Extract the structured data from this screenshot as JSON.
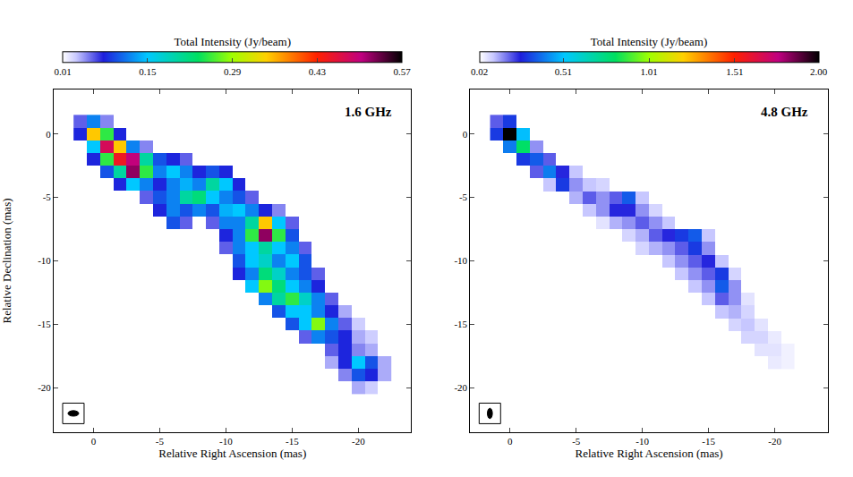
{
  "chart_data": [
    {
      "type": "heatmap",
      "title": "1.6 GHz",
      "xlabel": "Relative Right Ascension (mas)",
      "ylabel": "Relative Declination (mas)",
      "xlim": [
        3,
        -24
      ],
      "xticks": [
        0,
        -5,
        -10,
        -15,
        -20
      ],
      "ylim": [
        -23.5,
        3.5
      ],
      "yticks": [
        -20,
        -15,
        -10,
        -5,
        0
      ],
      "grid": false,
      "colorbar": {
        "title": "Total Intensity (Jy/beam)",
        "range": [
          0.01,
          0.57
        ],
        "ticks": [
          0.01,
          0.15,
          0.29,
          0.43,
          0.57
        ]
      },
      "cells": [
        [
          1,
          1,
          0.06
        ],
        [
          0,
          1,
          0.12
        ],
        [
          -1,
          1,
          0.05
        ],
        [
          1,
          0,
          0.08
        ],
        [
          0,
          0,
          0.35
        ],
        [
          -1,
          0,
          0.25
        ],
        [
          -2,
          0,
          0.08
        ],
        [
          0,
          -1,
          0.15
        ],
        [
          -1,
          -1,
          0.48
        ],
        [
          -2,
          -1,
          0.35
        ],
        [
          -3,
          -1,
          0.12
        ],
        [
          -4,
          -1,
          0.05
        ],
        [
          0,
          -2,
          0.08
        ],
        [
          -1,
          -2,
          0.25
        ],
        [
          -2,
          -2,
          0.45
        ],
        [
          -3,
          -2,
          0.5
        ],
        [
          -4,
          -2,
          0.2
        ],
        [
          -5,
          -2,
          0.1
        ],
        [
          -6,
          -2,
          0.08
        ],
        [
          -7,
          -2,
          0.06
        ],
        [
          -1,
          -3,
          0.1
        ],
        [
          -2,
          -3,
          0.2
        ],
        [
          -3,
          -3,
          0.52
        ],
        [
          -4,
          -3,
          0.25
        ],
        [
          -5,
          -3,
          0.12
        ],
        [
          -6,
          -3,
          0.15
        ],
        [
          -7,
          -3,
          0.12
        ],
        [
          -8,
          -3,
          0.08
        ],
        [
          -9,
          -3,
          0.1
        ],
        [
          -10,
          -3,
          0.08
        ],
        [
          -2,
          -4,
          0.08
        ],
        [
          -3,
          -4,
          0.15
        ],
        [
          -4,
          -4,
          0.12
        ],
        [
          -5,
          -4,
          0.08
        ],
        [
          -6,
          -4,
          0.12
        ],
        [
          -7,
          -4,
          0.14
        ],
        [
          -8,
          -4,
          0.12
        ],
        [
          -9,
          -4,
          0.2
        ],
        [
          -10,
          -4,
          0.15
        ],
        [
          -11,
          -4,
          0.08
        ],
        [
          -4,
          -5,
          0.06
        ],
        [
          -5,
          -5,
          0.1
        ],
        [
          -6,
          -5,
          0.12
        ],
        [
          -7,
          -5,
          0.2
        ],
        [
          -8,
          -5,
          0.22
        ],
        [
          -9,
          -5,
          0.15
        ],
        [
          -10,
          -5,
          0.12
        ],
        [
          -11,
          -5,
          0.1
        ],
        [
          -12,
          -5,
          0.06
        ],
        [
          -5,
          -6,
          0.08
        ],
        [
          -6,
          -6,
          0.12
        ],
        [
          -7,
          -6,
          0.1
        ],
        [
          -8,
          -6,
          0.12
        ],
        [
          -9,
          -6,
          0.1
        ],
        [
          -10,
          -6,
          0.14
        ],
        [
          -11,
          -6,
          0.15
        ],
        [
          -12,
          -6,
          0.12
        ],
        [
          -13,
          -6,
          0.08
        ],
        [
          -14,
          -6,
          0.05
        ],
        [
          -6,
          -7,
          0.1
        ],
        [
          -7,
          -7,
          0.06
        ],
        [
          -9,
          -7,
          0.06
        ],
        [
          -10,
          -7,
          0.12
        ],
        [
          -11,
          -7,
          0.12
        ],
        [
          -12,
          -7,
          0.2
        ],
        [
          -13,
          -7,
          0.35
        ],
        [
          -14,
          -7,
          0.15
        ],
        [
          -15,
          -7,
          0.06
        ],
        [
          -10,
          -8,
          0.08
        ],
        [
          -11,
          -8,
          0.12
        ],
        [
          -12,
          -8,
          0.25
        ],
        [
          -13,
          -8,
          0.52
        ],
        [
          -14,
          -8,
          0.25
        ],
        [
          -15,
          -8,
          0.1
        ],
        [
          -10,
          -9,
          0.06
        ],
        [
          -11,
          -9,
          0.12
        ],
        [
          -12,
          -9,
          0.15
        ],
        [
          -13,
          -9,
          0.2
        ],
        [
          -14,
          -9,
          0.15
        ],
        [
          -15,
          -9,
          0.12
        ],
        [
          -16,
          -9,
          0.06
        ],
        [
          -11,
          -10,
          0.1
        ],
        [
          -12,
          -10,
          0.15
        ],
        [
          -13,
          -10,
          0.18
        ],
        [
          -14,
          -10,
          0.12
        ],
        [
          -15,
          -10,
          0.15
        ],
        [
          -16,
          -10,
          0.1
        ],
        [
          -11,
          -11,
          0.08
        ],
        [
          -12,
          -11,
          0.12
        ],
        [
          -13,
          -11,
          0.22
        ],
        [
          -14,
          -11,
          0.18
        ],
        [
          -15,
          -11,
          0.12
        ],
        [
          -16,
          -11,
          0.1
        ],
        [
          -17,
          -11,
          0.06
        ],
        [
          -12,
          -12,
          0.15
        ],
        [
          -13,
          -12,
          0.28
        ],
        [
          -14,
          -12,
          0.22
        ],
        [
          -15,
          -12,
          0.15
        ],
        [
          -16,
          -12,
          0.12
        ],
        [
          -17,
          -12,
          0.08
        ],
        [
          -13,
          -13,
          0.12
        ],
        [
          -14,
          -13,
          0.2
        ],
        [
          -15,
          -13,
          0.25
        ],
        [
          -16,
          -13,
          0.18
        ],
        [
          -17,
          -13,
          0.12
        ],
        [
          -18,
          -13,
          0.06
        ],
        [
          -14,
          -14,
          0.1
        ],
        [
          -15,
          -14,
          0.15
        ],
        [
          -16,
          -14,
          0.15
        ],
        [
          -17,
          -14,
          0.12
        ],
        [
          -18,
          -14,
          0.08
        ],
        [
          -19,
          -14,
          0.04
        ],
        [
          -15,
          -15,
          0.1
        ],
        [
          -16,
          -15,
          0.15
        ],
        [
          -17,
          -15,
          0.28
        ],
        [
          -18,
          -15,
          0.12
        ],
        [
          -19,
          -15,
          0.06
        ],
        [
          -20,
          -15,
          0.03
        ],
        [
          -16,
          -16,
          0.06
        ],
        [
          -17,
          -16,
          0.12
        ],
        [
          -18,
          -16,
          0.1
        ],
        [
          -19,
          -16,
          0.08
        ],
        [
          -20,
          -16,
          0.04
        ],
        [
          -21,
          -16,
          0.03
        ],
        [
          -18,
          -17,
          0.06
        ],
        [
          -19,
          -17,
          0.08
        ],
        [
          -20,
          -17,
          0.05
        ],
        [
          -21,
          -17,
          0.04
        ],
        [
          -18,
          -18,
          0.04
        ],
        [
          -19,
          -18,
          0.08
        ],
        [
          -20,
          -18,
          0.15
        ],
        [
          -21,
          -18,
          0.1
        ],
        [
          -22,
          -18,
          0.04
        ],
        [
          -19,
          -19,
          0.05
        ],
        [
          -20,
          -19,
          0.1
        ],
        [
          -21,
          -19,
          0.08
        ],
        [
          -22,
          -19,
          0.04
        ],
        [
          -20,
          -20,
          0.04
        ],
        [
          -21,
          -20,
          0.03
        ]
      ]
    },
    {
      "type": "heatmap",
      "title": "4.8 GHz",
      "xlabel": "Relative Right Ascension (mas)",
      "xlim": [
        3,
        -24
      ],
      "xticks": [
        0,
        -5,
        -10,
        -15,
        -20
      ],
      "ylim": [
        -23.5,
        3.5
      ],
      "yticks": [
        -20,
        -15,
        -10,
        -5,
        0
      ],
      "grid": false,
      "colorbar": {
        "title": "Total Intensity (Jy/beam)",
        "range": [
          0.02,
          2
        ],
        "ticks": [
          0.02,
          0.51,
          1.01,
          1.51,
          {
            "value": 2,
            "label": "2.00"
          }
        ]
      },
      "cells": [
        [
          1,
          1,
          0.2
        ],
        [
          0,
          1,
          0.3
        ],
        [
          1,
          0,
          0.3
        ],
        [
          0,
          0,
          2.0
        ],
        [
          -1,
          0,
          0.5
        ],
        [
          0,
          -1,
          0.4
        ],
        [
          -1,
          -1,
          0.8
        ],
        [
          -2,
          -1,
          0.15
        ],
        [
          -1,
          -2,
          0.3
        ],
        [
          -2,
          -2,
          0.35
        ],
        [
          -3,
          -2,
          0.2
        ],
        [
          -2,
          -3,
          0.2
        ],
        [
          -3,
          -3,
          0.4
        ],
        [
          -4,
          -3,
          0.25
        ],
        [
          -5,
          -3,
          0.1
        ],
        [
          -3,
          -4,
          0.1
        ],
        [
          -4,
          -4,
          0.3
        ],
        [
          -5,
          -4,
          0.15
        ],
        [
          -6,
          -4,
          0.1
        ],
        [
          -7,
          -4,
          0.08
        ],
        [
          -5,
          -5,
          0.12
        ],
        [
          -6,
          -5,
          0.2
        ],
        [
          -7,
          -5,
          0.15
        ],
        [
          -8,
          -5,
          0.2
        ],
        [
          -9,
          -5,
          0.35
        ],
        [
          -10,
          -5,
          0.1
        ],
        [
          -6,
          -6,
          0.1
        ],
        [
          -7,
          -6,
          0.15
        ],
        [
          -8,
          -6,
          0.25
        ],
        [
          -9,
          -6,
          0.25
        ],
        [
          -10,
          -6,
          0.15
        ],
        [
          -11,
          -6,
          0.08
        ],
        [
          -7,
          -7,
          0.06
        ],
        [
          -8,
          -7,
          0.12
        ],
        [
          -9,
          -7,
          0.15
        ],
        [
          -10,
          -7,
          0.2
        ],
        [
          -11,
          -7,
          0.15
        ],
        [
          -12,
          -7,
          0.1
        ],
        [
          -9,
          -8,
          0.08
        ],
        [
          -10,
          -8,
          0.12
        ],
        [
          -11,
          -8,
          0.2
        ],
        [
          -12,
          -8,
          0.25
        ],
        [
          -13,
          -8,
          0.3
        ],
        [
          -14,
          -8,
          0.35
        ],
        [
          -15,
          -8,
          0.1
        ],
        [
          -10,
          -9,
          0.08
        ],
        [
          -11,
          -9,
          0.12
        ],
        [
          -12,
          -9,
          0.15
        ],
        [
          -13,
          -9,
          0.2
        ],
        [
          -14,
          -9,
          0.3
        ],
        [
          -15,
          -9,
          0.15
        ],
        [
          -12,
          -10,
          0.1
        ],
        [
          -13,
          -10,
          0.15
        ],
        [
          -14,
          -10,
          0.2
        ],
        [
          -15,
          -10,
          0.25
        ],
        [
          -16,
          -10,
          0.1
        ],
        [
          -13,
          -11,
          0.1
        ],
        [
          -14,
          -11,
          0.15
        ],
        [
          -15,
          -11,
          0.2
        ],
        [
          -16,
          -11,
          0.3
        ],
        [
          -17,
          -11,
          0.08
        ],
        [
          -14,
          -12,
          0.1
        ],
        [
          -15,
          -12,
          0.15
        ],
        [
          -16,
          -12,
          0.35
        ],
        [
          -17,
          -12,
          0.15
        ],
        [
          -15,
          -13,
          0.1
        ],
        [
          -16,
          -13,
          0.2
        ],
        [
          -17,
          -13,
          0.15
        ],
        [
          -18,
          -13,
          0.06
        ],
        [
          -16,
          -14,
          0.1
        ],
        [
          -17,
          -14,
          0.12
        ],
        [
          -18,
          -14,
          0.08
        ],
        [
          -17,
          -15,
          0.08
        ],
        [
          -18,
          -15,
          0.1
        ],
        [
          -19,
          -15,
          0.06
        ],
        [
          -18,
          -16,
          0.08
        ],
        [
          -19,
          -16,
          0.08
        ],
        [
          -20,
          -16,
          0.05
        ],
        [
          -19,
          -17,
          0.06
        ],
        [
          -20,
          -17,
          0.06
        ],
        [
          -21,
          -17,
          0.04
        ],
        [
          -20,
          -18,
          0.05
        ],
        [
          -21,
          -18,
          0.04
        ]
      ]
    }
  ]
}
